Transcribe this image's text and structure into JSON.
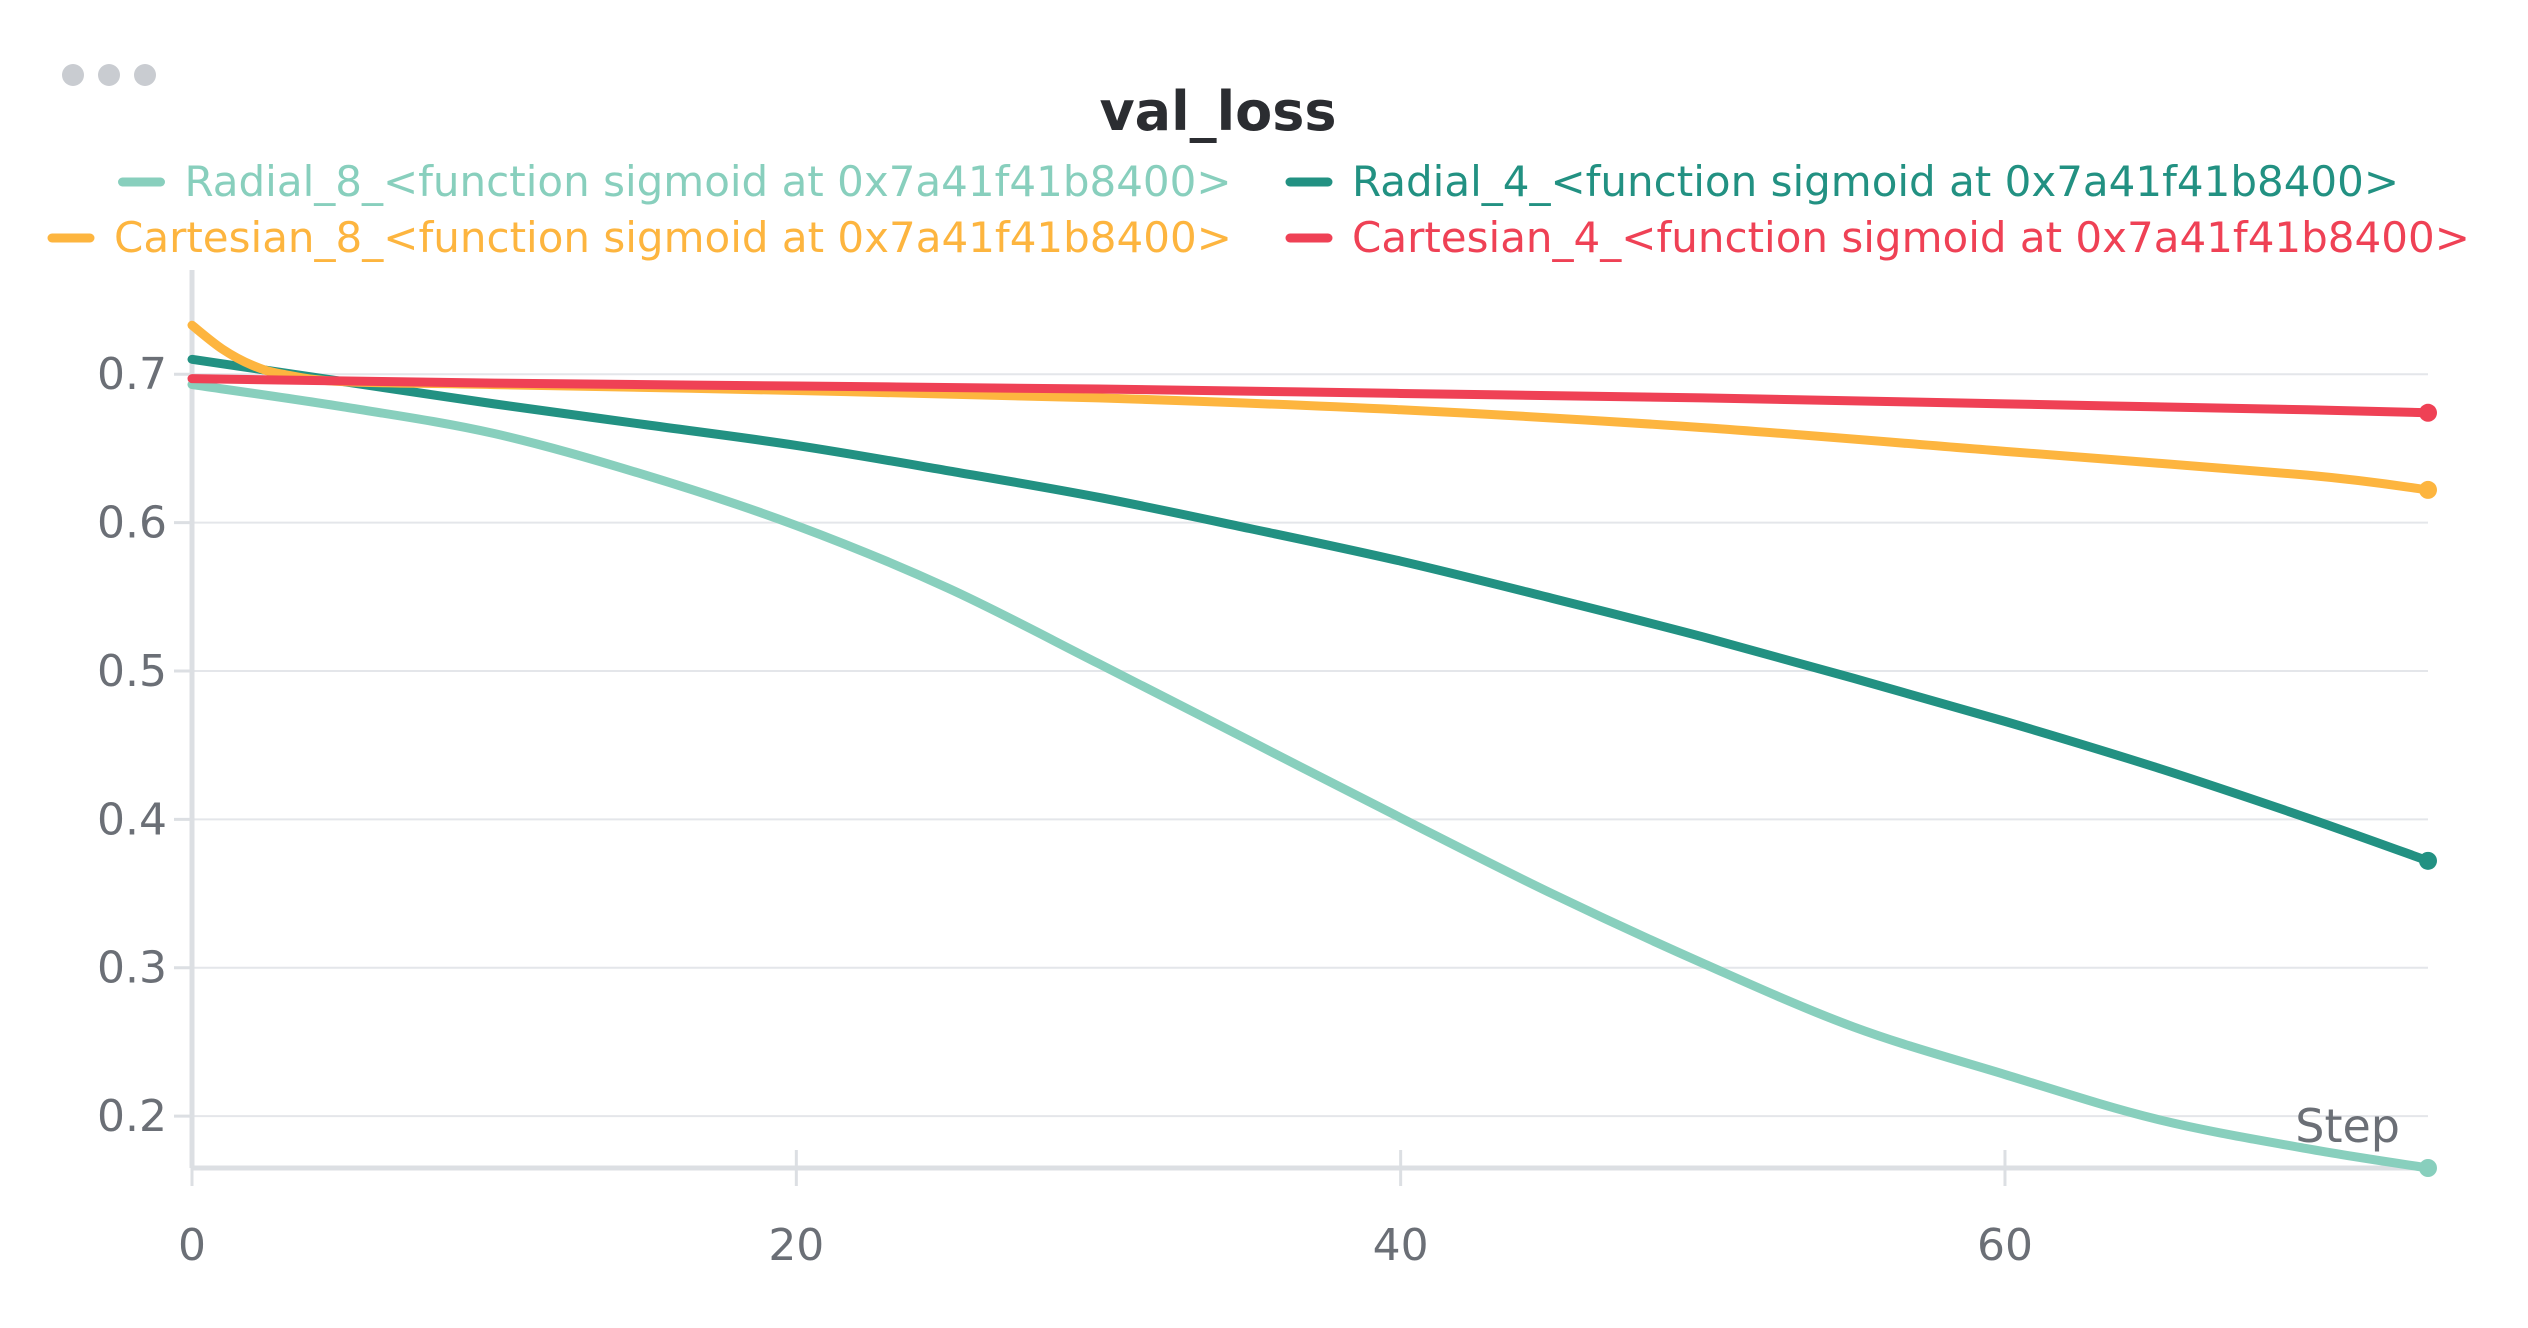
{
  "panel": {
    "menu_icon": "more-horizontal-icon"
  },
  "chart_data": {
    "type": "line",
    "title": "val_loss",
    "xlabel": "Step",
    "ylabel": "",
    "xlim": [
      0,
      74
    ],
    "ylim": [
      0.165,
      0.75
    ],
    "xticks": [
      0,
      20,
      40,
      60
    ],
    "xtick_labels": [
      "0",
      "20",
      "40",
      "60"
    ],
    "yticks": [
      0.2,
      0.3,
      0.4,
      0.5,
      0.6,
      0.7
    ],
    "ytick_labels": [
      "0.2",
      "0.3",
      "0.4",
      "0.5",
      "0.6",
      "0.7"
    ],
    "grid": true,
    "legend_position": "top",
    "series": [
      {
        "name": "Radial_8_<function sigmoid at 0x7a41f41b8400>",
        "color": "#88cfbd",
        "x": [
          0,
          5,
          10,
          15,
          20,
          25,
          30,
          35,
          40,
          45,
          50,
          55,
          60,
          65,
          70,
          74
        ],
        "y": [
          0.693,
          0.678,
          0.66,
          0.632,
          0.598,
          0.556,
          0.505,
          0.453,
          0.401,
          0.35,
          0.303,
          0.26,
          0.228,
          0.198,
          0.178,
          0.165
        ]
      },
      {
        "name": "Radial_4_<function sigmoid at 0x7a41f41b8400>",
        "color": "#229182",
        "x": [
          0,
          5,
          10,
          15,
          20,
          25,
          30,
          35,
          40,
          45,
          50,
          55,
          60,
          65,
          70,
          74
        ],
        "y": [
          0.71,
          0.695,
          0.68,
          0.666,
          0.652,
          0.635,
          0.617,
          0.596,
          0.574,
          0.549,
          0.523,
          0.495,
          0.466,
          0.435,
          0.401,
          0.372
        ]
      },
      {
        "name": "Cartesian_8_<function sigmoid at 0x7a41f41b8400>",
        "color": "#fdb53f",
        "x": [
          0,
          1,
          2,
          3,
          5,
          10,
          20,
          30,
          40,
          50,
          60,
          70,
          74
        ],
        "y": [
          0.733,
          0.717,
          0.706,
          0.7,
          0.695,
          0.693,
          0.689,
          0.684,
          0.676,
          0.664,
          0.648,
          0.632,
          0.622
        ]
      },
      {
        "name": "Cartesian_4_<function sigmoid at 0x7a41f41b8400>",
        "color": "#ef4155",
        "x": [
          0,
          10,
          20,
          30,
          40,
          50,
          60,
          70,
          74
        ],
        "y": [
          0.697,
          0.694,
          0.692,
          0.69,
          0.687,
          0.684,
          0.68,
          0.676,
          0.674
        ]
      }
    ]
  }
}
